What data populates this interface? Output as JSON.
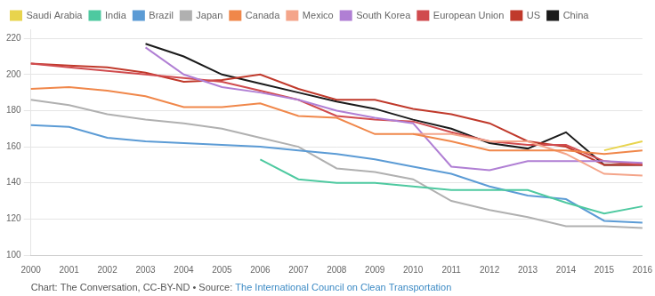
{
  "chart_data": {
    "type": "line",
    "categories": [
      "2000",
      "2001",
      "2002",
      "2003",
      "2004",
      "2005",
      "2006",
      "2007",
      "2008",
      "2009",
      "2010",
      "2011",
      "2012",
      "2013",
      "2014",
      "2015",
      "2016"
    ],
    "series": [
      {
        "name": "Saudi Arabia",
        "color": "#e8d44d",
        "values": [
          null,
          null,
          null,
          null,
          null,
          null,
          null,
          null,
          null,
          null,
          null,
          null,
          null,
          null,
          null,
          158,
          163
        ]
      },
      {
        "name": "India",
        "color": "#4ec9a0",
        "values": [
          null,
          null,
          null,
          null,
          null,
          null,
          153,
          142,
          140,
          140,
          138,
          136,
          136,
          136,
          129,
          123,
          127
        ]
      },
      {
        "name": "Brazil",
        "color": "#5b9bd5",
        "values": [
          172,
          171,
          165,
          163,
          162,
          161,
          160,
          158,
          156,
          153,
          149,
          145,
          138,
          133,
          131,
          119,
          118
        ]
      },
      {
        "name": "Japan",
        "color": "#b0b0b0",
        "values": [
          186,
          183,
          178,
          175,
          173,
          170,
          165,
          160,
          148,
          146,
          142,
          130,
          125,
          121,
          116,
          116,
          115
        ]
      },
      {
        "name": "Canada",
        "color": "#f0874a",
        "values": [
          192,
          193,
          191,
          188,
          182,
          182,
          184,
          177,
          176,
          167,
          167,
          163,
          158,
          158,
          158,
          156,
          158
        ]
      },
      {
        "name": "Mexico",
        "color": "#f4a58a",
        "values": [
          null,
          null,
          null,
          null,
          null,
          null,
          null,
          null,
          null,
          null,
          167,
          167,
          163,
          163,
          156,
          145,
          144
        ]
      },
      {
        "name": "South Korea",
        "color": "#b07fd4",
        "values": [
          null,
          null,
          null,
          215,
          200,
          193,
          190,
          186,
          180,
          176,
          173,
          149,
          147,
          152,
          152,
          152,
          151
        ]
      },
      {
        "name": "European Union",
        "color": "#d04b4e",
        "values": [
          206,
          204,
          202,
          200,
          198,
          196,
          191,
          186,
          177,
          175,
          174,
          168,
          163,
          161,
          161,
          152,
          150
        ]
      },
      {
        "name": "US",
        "color": "#c0392b",
        "values": [
          206,
          205,
          204,
          201,
          196,
          197,
          200,
          192,
          186,
          186,
          181,
          178,
          173,
          163,
          160,
          150,
          150
        ]
      },
      {
        "name": "China",
        "color": "#1a1a1a",
        "values": [
          null,
          null,
          null,
          217,
          210,
          200,
          195,
          190,
          185,
          181,
          175,
          170,
          162,
          159,
          168,
          150,
          150
        ]
      }
    ],
    "ylim": [
      100,
      225
    ],
    "yticks": [
      100,
      120,
      140,
      160,
      180,
      200,
      220
    ],
    "grid": true,
    "legend": "top",
    "annotations": [
      {
        "text": "Chart: The Conversation, CC-BY-ND • Source: ",
        "color": "#555555"
      },
      {
        "text": "The International Council on Clean Transportation",
        "color": "#3e8bc5"
      }
    ]
  }
}
